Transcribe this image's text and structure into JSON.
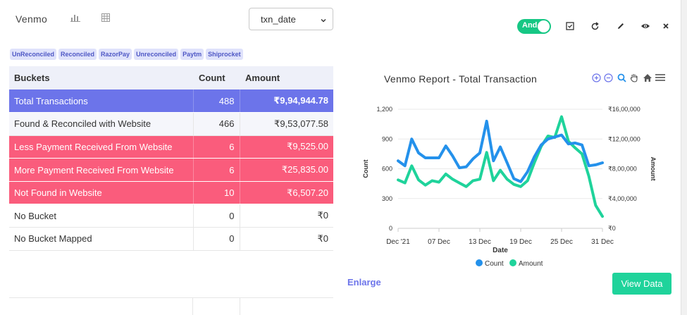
{
  "header": {
    "title": "Venmo",
    "bar_chart_icon": "bar-chart-icon",
    "table_icon": "table-icon"
  },
  "date_select": {
    "value": "txn_date"
  },
  "toggle": {
    "label": "And",
    "state": "on",
    "color": "#16c784"
  },
  "toolbar": [
    "checkbox-icon",
    "refresh-icon",
    "edit-icon",
    "eye-icon",
    "close-icon"
  ],
  "tags": [
    "UnReconciled",
    "Reconciled",
    "RazorPay",
    "Unreconciled",
    "Paytm",
    "Shiprocket"
  ],
  "table": {
    "headers": [
      "Buckets",
      "Count",
      "Amount"
    ],
    "rows": [
      {
        "bucket": "Total Transactions",
        "count": "488",
        "amount": "₹9,94,944.78",
        "style": "blue"
      },
      {
        "bucket": "Found & Reconciled with Website",
        "count": "466",
        "amount": "₹9,53,077.58",
        "style": "gray"
      },
      {
        "bucket": "Less Payment Received From Website",
        "count": "6",
        "amount": "₹9,525.00",
        "style": "red"
      },
      {
        "bucket": "More Payment Received From Website",
        "count": "6",
        "amount": "₹25,835.00",
        "style": "red"
      },
      {
        "bucket": "Not Found in Website",
        "count": "10",
        "amount": "₹6,507.20",
        "style": "red"
      },
      {
        "bucket": "No Bucket",
        "count": "0",
        "amount": "₹0",
        "style": "white"
      },
      {
        "bucket": "No Bucket Mapped",
        "count": "0",
        "amount": "₹0",
        "style": "white"
      }
    ]
  },
  "chart": {
    "title": "Venmo Report - Total Transaction",
    "tools": [
      "zoom-in-icon",
      "zoom-out-icon",
      "search-zoom-icon",
      "pan-hand-icon",
      "home-icon",
      "menu-icon"
    ]
  },
  "chart_data": {
    "type": "line",
    "title": "Venmo Report - Total Transaction",
    "xlabel": "Date",
    "ylabel_left": "Count",
    "ylabel_right": "Amount",
    "x_ticks": [
      "Dec '21",
      "07 Dec",
      "13 Dec",
      "19 Dec",
      "25 Dec",
      "31 Dec"
    ],
    "y_left_ticks": [
      "0",
      "300",
      "600",
      "900",
      "1,200"
    ],
    "y_right_ticks": [
      "₹0",
      "₹4,00,000",
      "₹8,00,000",
      "₹12,00,000",
      "₹16,00,000"
    ],
    "ylim_left": [
      0,
      1200
    ],
    "ylim_right": [
      0,
      1600000
    ],
    "x": [
      "Dec '21",
      "02 Dec",
      "03 Dec",
      "04 Dec",
      "05 Dec",
      "06 Dec",
      "07 Dec",
      "08 Dec",
      "09 Dec",
      "10 Dec",
      "11 Dec",
      "12 Dec",
      "13 Dec",
      "14 Dec",
      "15 Dec",
      "16 Dec",
      "17 Dec",
      "18 Dec",
      "19 Dec",
      "20 Dec",
      "21 Dec",
      "22 Dec",
      "23 Dec",
      "24 Dec",
      "25 Dec",
      "26 Dec",
      "27 Dec",
      "28 Dec",
      "29 Dec",
      "30 Dec",
      "31 Dec"
    ],
    "series": [
      {
        "name": "Count",
        "axis": "left",
        "color": "#2491eb",
        "values": [
          680,
          630,
          900,
          760,
          710,
          710,
          710,
          830,
          730,
          610,
          620,
          700,
          760,
          1080,
          680,
          820,
          660,
          500,
          470,
          570,
          720,
          840,
          900,
          920,
          940,
          850,
          860,
          840,
          630,
          640,
          660
        ]
      },
      {
        "name": "Amount",
        "axis": "right",
        "color": "#1fd39b",
        "values": [
          650000,
          610000,
          840000,
          650000,
          580000,
          640000,
          620000,
          730000,
          660000,
          610000,
          560000,
          640000,
          660000,
          1020000,
          640000,
          780000,
          660000,
          590000,
          560000,
          640000,
          880000,
          1100000,
          1240000,
          1220000,
          1500000,
          1170000,
          1080000,
          1000000,
          700000,
          310000,
          160000
        ]
      }
    ],
    "legend": "bottom",
    "grid": "horizontal"
  },
  "footer": {
    "enlarge_label": "Enlarge",
    "view_data_label": "View Data"
  }
}
